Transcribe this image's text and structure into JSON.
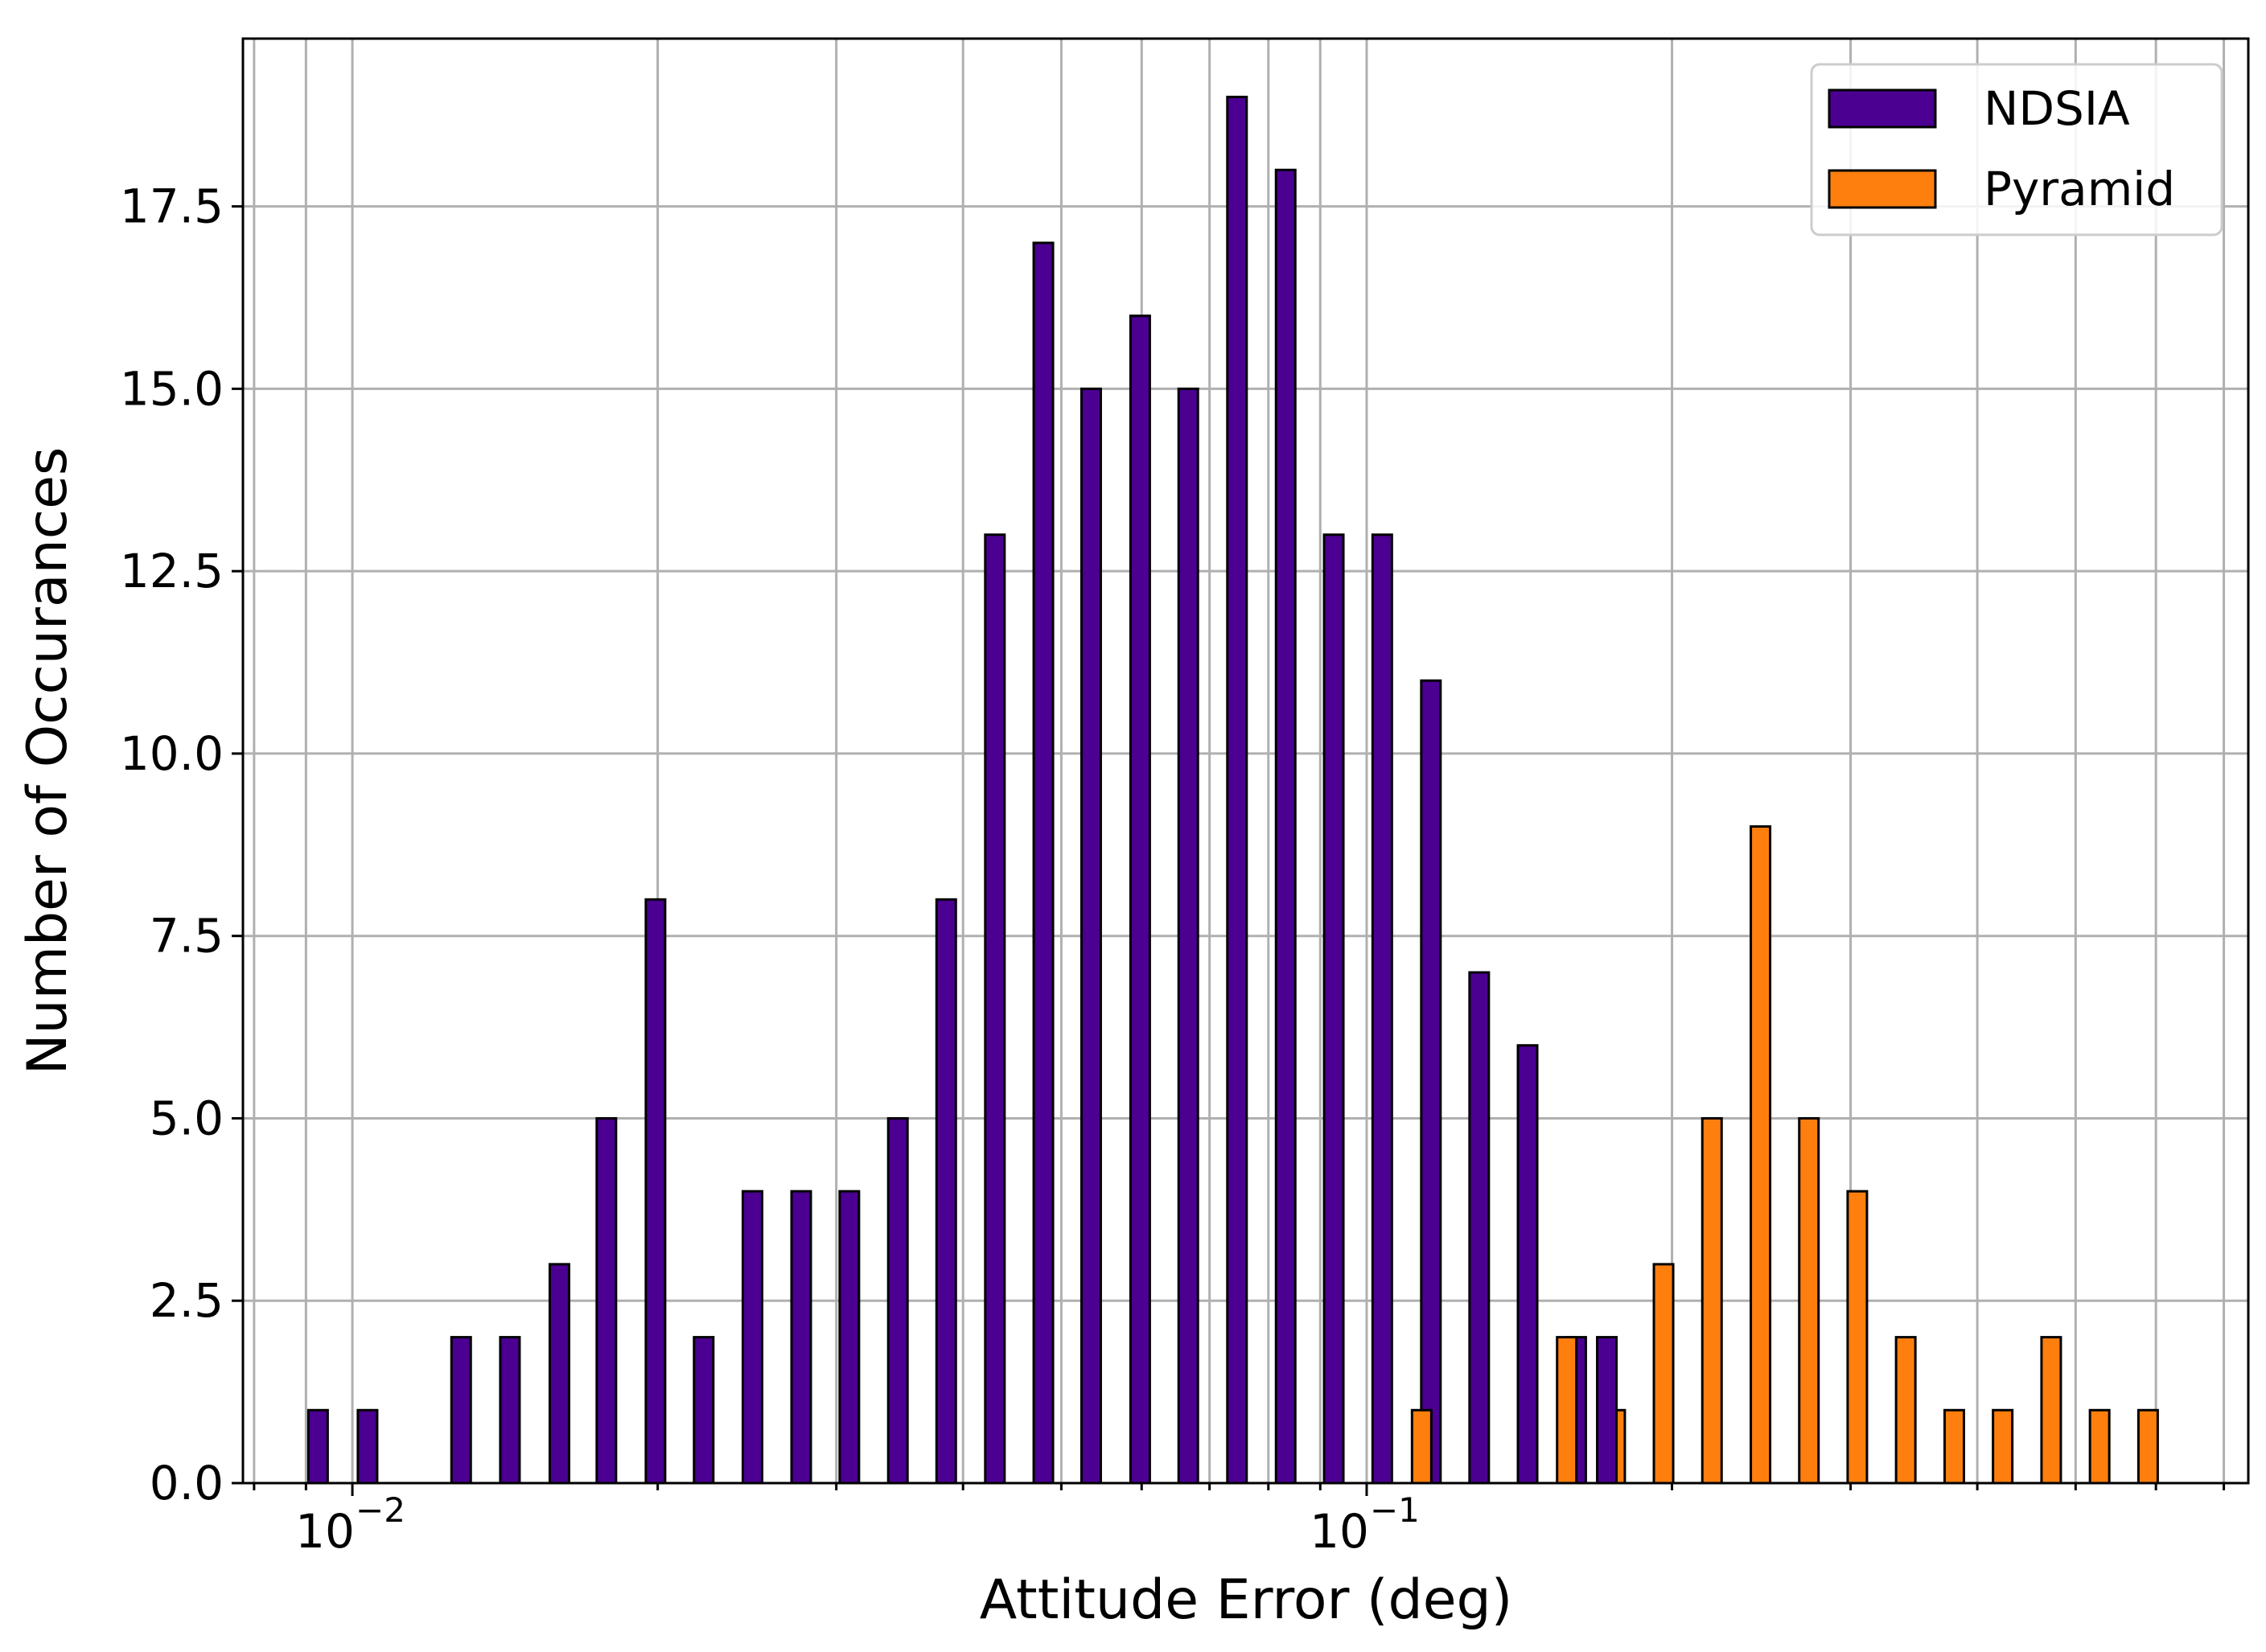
{
  "chart_data": {
    "type": "bar",
    "xscale": "log",
    "xlabel": "Attitude Error (deg)",
    "ylabel": "Number of Occurances",
    "xlim": [
      0.0078,
      0.74
    ],
    "ylim": [
      0,
      19.8
    ],
    "grid": true,
    "legend_position": "top-right",
    "yticks": [
      "0.0",
      "2.5",
      "5.0",
      "7.5",
      "10.0",
      "12.5",
      "15.0",
      "17.5"
    ],
    "xticks": [
      {
        "base": "10",
        "exp": "−2"
      },
      {
        "base": "10",
        "exp": "−1"
      }
    ],
    "series": [
      {
        "name": "NDSIA",
        "color": "#4b0092",
        "x": [
          0.00925,
          0.01035,
          0.0128,
          0.0143,
          0.016,
          0.0178,
          0.0199,
          0.0222,
          0.0248,
          0.0277,
          0.0309,
          0.0345,
          0.0385,
          0.043,
          0.048,
          0.0535,
          0.0598,
          0.0667,
          0.0745,
          0.0832,
          0.0928,
          0.1036,
          0.1157,
          0.1291,
          0.1441,
          0.1609,
          0.1796
        ],
        "values": [
          1,
          1,
          2,
          2,
          3,
          5,
          8,
          2,
          4,
          4,
          4,
          5,
          8,
          13,
          17,
          15,
          16,
          15,
          19,
          18,
          13,
          13,
          11,
          7,
          6,
          2,
          0
        ]
      },
      {
        "name": "Pyramid",
        "color": "#ff7f0e",
        "x": [
          0.1133,
          0.1264,
          0.1411,
          0.1575,
          0.1758,
          0.1962,
          0.219,
          0.2445,
          0.2729,
          0.3046,
          0.34,
          0.3796,
          0.4237,
          0.473,
          0.528,
          0.5894
        ],
        "values": [
          1,
          0,
          0,
          2,
          1,
          3,
          5,
          9,
          5,
          4,
          2,
          1,
          1,
          2,
          1,
          1
        ]
      }
    ],
    "ndsia_extra": {
      "x": 0.1725,
      "value": 2
    }
  }
}
